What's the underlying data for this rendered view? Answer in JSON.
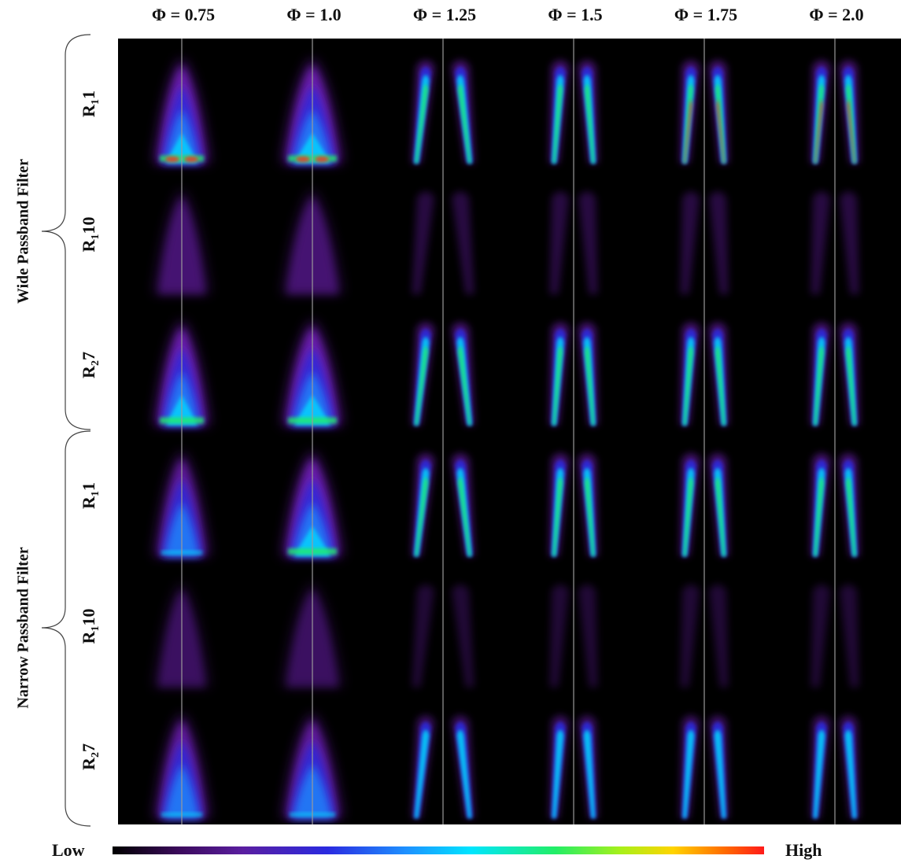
{
  "columns": [
    {
      "label": "Φ = 0.75",
      "phi": 0.75
    },
    {
      "label": "Φ = 1.0",
      "phi": 1.0
    },
    {
      "label": "Φ = 1.25",
      "phi": 1.25
    },
    {
      "label": "Φ = 1.5",
      "phi": 1.5
    },
    {
      "label": "Φ = 1.75",
      "phi": 1.75
    },
    {
      "label": "Φ = 2.0",
      "phi": 2.0
    }
  ],
  "groups": [
    {
      "label": "Wide Passband Filter"
    },
    {
      "label": "Narrow Passband Filter"
    }
  ],
  "rows": [
    {
      "prefix": "R",
      "sub": "1",
      "suffix": "1"
    },
    {
      "prefix": "R",
      "sub": "1",
      "suffix": "10"
    },
    {
      "prefix": "R",
      "sub": "2",
      "suffix": "7"
    },
    {
      "prefix": "R",
      "sub": "1",
      "suffix": "1"
    },
    {
      "prefix": "R",
      "sub": "1",
      "suffix": "10"
    },
    {
      "prefix": "R",
      "sub": "2",
      "suffix": "7"
    }
  ],
  "colorbar": {
    "low_label": "Low",
    "high_label": "High",
    "colors": [
      "#000000",
      "#5a1ea0",
      "#2a2ae0",
      "#00e5ff",
      "#22ee66",
      "#ffd400",
      "#ff1a1a"
    ]
  }
}
